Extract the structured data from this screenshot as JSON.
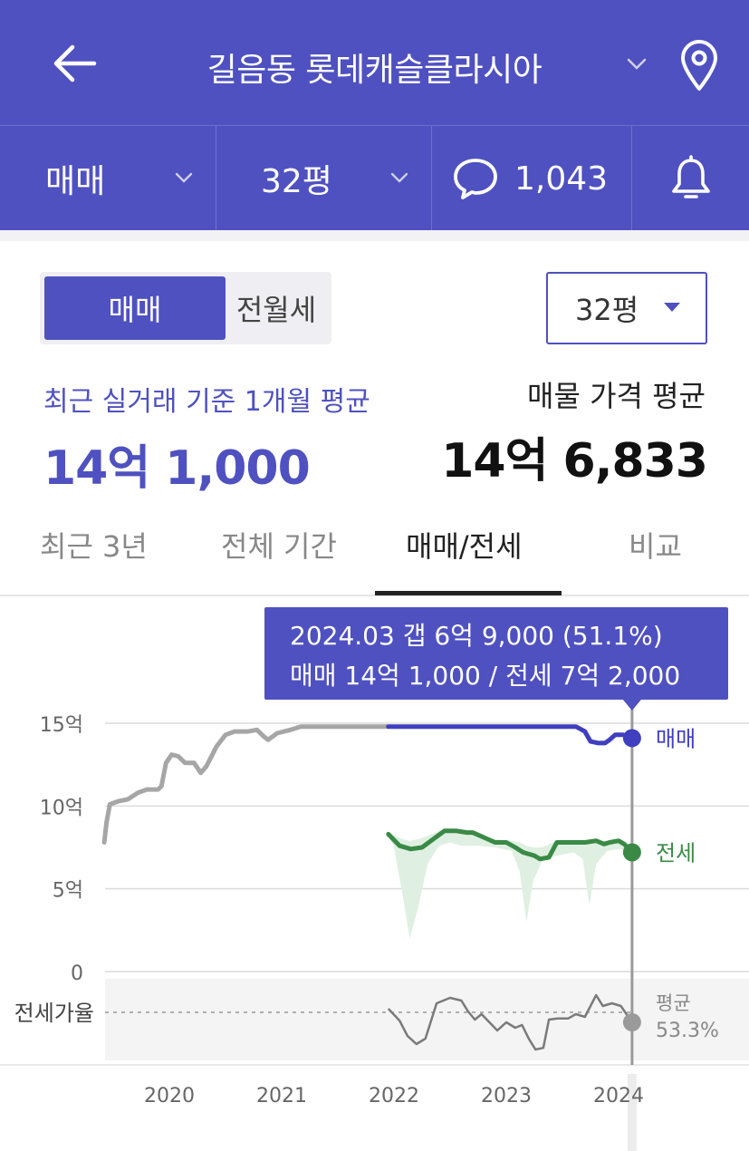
{
  "header": {
    "title": "길음동 롯데캐슬클라시아",
    "icons": {
      "back": "back-arrow-icon",
      "chevron": "chevron-down-icon",
      "location": "location-pin-icon"
    },
    "filters": {
      "deal_type": "매매",
      "size": "32평",
      "comments_count": "1,043"
    },
    "colors": {
      "header_bg": "#4f51c0"
    }
  },
  "toggle": {
    "options": [
      "매매",
      "전월세"
    ],
    "selected": "매매"
  },
  "size_select": {
    "value": "32평"
  },
  "summary": {
    "recent_label": "최근 실거래 기준 1개월 평균",
    "recent_value": "14억 1,000",
    "listing_label": "매물 가격 평균",
    "listing_value": "14억 6,833"
  },
  "tabs": [
    {
      "label": "최근 3년",
      "active": false
    },
    {
      "label": "전체 기간",
      "active": false
    },
    {
      "label": "매매/전세",
      "active": true
    },
    {
      "label": "비교",
      "active": false
    }
  ],
  "tooltip": {
    "line1": "2024.03  갭 6억 9,000 (51.1%)",
    "line2": "매매 14억 1,000 / 전세 7억 2,000"
  },
  "chart_data": {
    "type": "line",
    "x_unit": "year",
    "x_ticks": [
      "2020",
      "2021",
      "2022",
      "2023",
      "2024"
    ],
    "y_ticks": [
      "15억",
      "10억",
      "5억",
      "0"
    ],
    "ylim": [
      0,
      15
    ],
    "ratio_label": "전세가율",
    "series": [
      {
        "name": "매매",
        "color": "#3f3fbf",
        "history_color": "#a6a6a6",
        "highlight_from": 2021.95,
        "points": [
          [
            2019.42,
            7.8
          ],
          [
            2019.44,
            9.0
          ],
          [
            2019.47,
            10.1
          ],
          [
            2019.55,
            10.3
          ],
          [
            2019.63,
            10.4
          ],
          [
            2019.72,
            10.8
          ],
          [
            2019.8,
            11.0
          ],
          [
            2019.9,
            11.0
          ],
          [
            2019.93,
            11.2
          ],
          [
            2019.97,
            12.6
          ],
          [
            2020.02,
            13.1
          ],
          [
            2020.08,
            13.0
          ],
          [
            2020.14,
            12.6
          ],
          [
            2020.22,
            12.6
          ],
          [
            2020.28,
            12.0
          ],
          [
            2020.33,
            12.4
          ],
          [
            2020.42,
            13.6
          ],
          [
            2020.5,
            14.3
          ],
          [
            2020.58,
            14.5
          ],
          [
            2020.7,
            14.5
          ],
          [
            2020.78,
            14.6
          ],
          [
            2020.84,
            14.2
          ],
          [
            2020.88,
            14.0
          ],
          [
            2020.96,
            14.4
          ],
          [
            2021.08,
            14.6
          ],
          [
            2021.17,
            14.8
          ],
          [
            2021.4,
            14.8
          ],
          [
            2021.7,
            14.8
          ],
          [
            2021.95,
            14.8
          ],
          [
            2022.2,
            14.8
          ],
          [
            2022.6,
            14.8
          ],
          [
            2023.0,
            14.8
          ],
          [
            2023.3,
            14.8
          ],
          [
            2023.62,
            14.8
          ],
          [
            2023.7,
            14.5
          ],
          [
            2023.75,
            13.9
          ],
          [
            2023.82,
            13.8
          ],
          [
            2023.88,
            13.8
          ],
          [
            2023.92,
            14.0
          ],
          [
            2023.97,
            14.3
          ],
          [
            2024.04,
            14.3
          ],
          [
            2024.12,
            14.1
          ]
        ]
      },
      {
        "name": "전세",
        "color": "#3a8a46",
        "band_color": "#dff0e2",
        "points": [
          [
            2021.95,
            8.3
          ],
          [
            2022.05,
            7.6
          ],
          [
            2022.15,
            7.4
          ],
          [
            2022.25,
            7.5
          ],
          [
            2022.35,
            8.0
          ],
          [
            2022.45,
            8.5
          ],
          [
            2022.55,
            8.5
          ],
          [
            2022.65,
            8.4
          ],
          [
            2022.7,
            8.4
          ],
          [
            2022.8,
            8.1
          ],
          [
            2022.9,
            7.8
          ],
          [
            2023.0,
            7.8
          ],
          [
            2023.08,
            7.5
          ],
          [
            2023.15,
            7.2
          ],
          [
            2023.25,
            7.0
          ],
          [
            2023.3,
            6.8
          ],
          [
            2023.38,
            6.9
          ],
          [
            2023.45,
            7.8
          ],
          [
            2023.55,
            7.8
          ],
          [
            2023.7,
            7.8
          ],
          [
            2023.8,
            7.9
          ],
          [
            2023.87,
            7.7
          ],
          [
            2023.92,
            7.8
          ],
          [
            2024.0,
            7.9
          ],
          [
            2024.05,
            7.7
          ],
          [
            2024.12,
            7.2
          ]
        ],
        "band": [
          [
            2021.95,
            8.3,
            8.3
          ],
          [
            2022.0,
            7.5,
            8.2
          ],
          [
            2022.08,
            4.5,
            8.0
          ],
          [
            2022.14,
            2.0,
            7.9
          ],
          [
            2022.22,
            4.0,
            8.0
          ],
          [
            2022.3,
            6.5,
            8.2
          ],
          [
            2022.4,
            7.6,
            8.5
          ],
          [
            2022.5,
            7.8,
            8.6
          ],
          [
            2022.6,
            7.6,
            8.5
          ],
          [
            2022.75,
            7.6,
            8.3
          ],
          [
            2022.9,
            7.5,
            8.0
          ],
          [
            2023.05,
            7.3,
            7.9
          ],
          [
            2023.12,
            6.0,
            7.8
          ],
          [
            2023.18,
            3.0,
            7.6
          ],
          [
            2023.24,
            5.5,
            7.5
          ],
          [
            2023.32,
            6.7,
            7.5
          ],
          [
            2023.45,
            7.0,
            7.9
          ],
          [
            2023.6,
            7.2,
            7.9
          ],
          [
            2023.68,
            6.8,
            7.9
          ],
          [
            2023.74,
            4.0,
            7.9
          ],
          [
            2023.8,
            6.5,
            7.9
          ],
          [
            2023.9,
            7.3,
            7.9
          ],
          [
            2024.0,
            7.4,
            7.9
          ],
          [
            2024.12,
            7.2,
            7.2
          ]
        ]
      },
      {
        "name": "평균",
        "label": "평균",
        "value_label": "53.3%",
        "color": "#7a7a7a",
        "points": [
          [
            2021.95,
            0.3
          ],
          [
            2022.05,
            0.52
          ],
          [
            2022.12,
            0.8
          ],
          [
            2022.2,
            0.95
          ],
          [
            2022.28,
            0.85
          ],
          [
            2022.38,
            0.2
          ],
          [
            2022.5,
            0.1
          ],
          [
            2022.6,
            0.15
          ],
          [
            2022.66,
            0.35
          ],
          [
            2022.72,
            0.5
          ],
          [
            2022.78,
            0.4
          ],
          [
            2022.85,
            0.55
          ],
          [
            2022.92,
            0.7
          ],
          [
            2023.0,
            0.55
          ],
          [
            2023.08,
            0.65
          ],
          [
            2023.14,
            0.6
          ],
          [
            2023.2,
            0.85
          ],
          [
            2023.26,
            1.05
          ],
          [
            2023.33,
            1.02
          ],
          [
            2023.38,
            0.5
          ],
          [
            2023.46,
            0.48
          ],
          [
            2023.55,
            0.48
          ],
          [
            2023.62,
            0.4
          ],
          [
            2023.7,
            0.45
          ],
          [
            2023.8,
            0.05
          ],
          [
            2023.86,
            0.25
          ],
          [
            2023.94,
            0.2
          ],
          [
            2024.02,
            0.25
          ],
          [
            2024.12,
            0.55
          ]
        ]
      }
    ],
    "selected_x": 2024.12,
    "colors": {
      "grid": "#dcdcdc",
      "cursor": "#9a9a9a",
      "ratio_bg": "#f4f4f4"
    }
  }
}
